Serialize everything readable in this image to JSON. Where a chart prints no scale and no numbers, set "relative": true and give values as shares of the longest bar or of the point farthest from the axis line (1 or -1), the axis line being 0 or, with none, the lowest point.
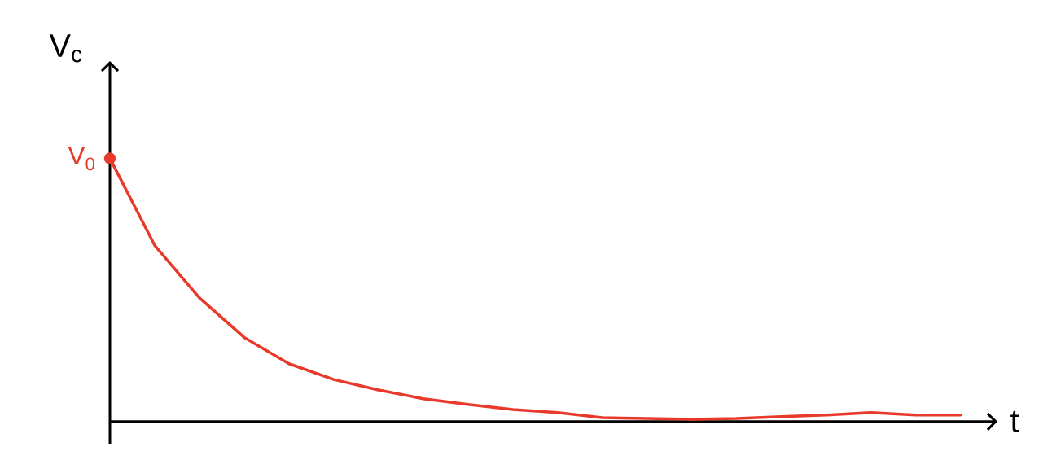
{
  "chart_data": {
    "type": "line",
    "relative": true,
    "xlabel": "t",
    "ylabel": "V$_{c}$",
    "categories": [
      null,
      null,
      null,
      null,
      null,
      null,
      null,
      null,
      null,
      null,
      null,
      null,
      null,
      null,
      null,
      null,
      null,
      null,
      null,
      null
    ],
    "series": [
      {
        "color": "#e8392b",
        "values": [
          1.0,
          0.67,
          0.47,
          0.32,
          0.22,
          0.16,
          0.12,
          0.087,
          0.065,
          0.046,
          0.034,
          0.015,
          0.012,
          0.009,
          0.012,
          0.019,
          0.025,
          0.034,
          0.025,
          0.025
        ]
      }
    ],
    "annotations": [
      "V$_{0}$"
    ],
    "marker": "none",
    "line_style": "solid"
  }
}
